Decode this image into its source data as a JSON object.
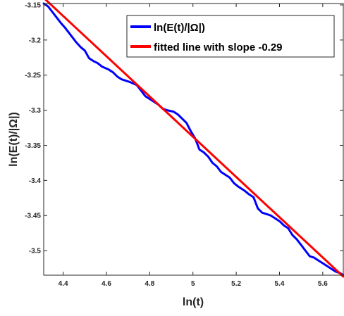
{
  "chart_data": {
    "type": "line",
    "xlabel": "ln(t)",
    "ylabel": "ln(E(t)/|Ω|)",
    "xlim": [
      4.31,
      5.695
    ],
    "ylim": [
      -3.535,
      -3.148
    ],
    "xticks": [
      4.4,
      4.6,
      4.8,
      5,
      5.2,
      5.4,
      5.6
    ],
    "xtick_labels": [
      "4.4",
      "4.6",
      "4.8",
      "5",
      "5.2",
      "5.4",
      "5.6"
    ],
    "yticks": [
      -3.15,
      -3.2,
      -3.25,
      -3.3,
      -3.35,
      -3.4,
      -3.45,
      -3.5
    ],
    "ytick_labels": [
      "-3.15",
      "-3.2",
      "-3.25",
      "-3.3",
      "-3.35",
      "-3.4",
      "-3.45",
      "-3.5"
    ],
    "grid": false,
    "legend_position": "top-right",
    "series": [
      {
        "name": "ln(E(t)/|Ω|)",
        "color": "#0000ff",
        "x": [
          4.31,
          4.33,
          4.35,
          4.37,
          4.39,
          4.41,
          4.44,
          4.46,
          4.48,
          4.5,
          4.52,
          4.54,
          4.56,
          4.58,
          4.61,
          4.63,
          4.65,
          4.67,
          4.69,
          4.71,
          4.74,
          4.76,
          4.78,
          4.8,
          4.82,
          4.84,
          4.86,
          4.88,
          4.91,
          4.93,
          4.95,
          4.97,
          4.99,
          5.01,
          5.03,
          5.05,
          5.07,
          5.09,
          5.11,
          5.13,
          5.15,
          5.17,
          5.19,
          5.21,
          5.24,
          5.26,
          5.28,
          5.3,
          5.32,
          5.34,
          5.36,
          5.38,
          5.4,
          5.42,
          5.44,
          5.46,
          5.48,
          5.5,
          5.52,
          5.54,
          5.56,
          5.58,
          5.6,
          5.62,
          5.64,
          5.66,
          5.68,
          5.695
        ],
        "y": [
          -3.148,
          -3.152,
          -3.16,
          -3.168,
          -3.176,
          -3.183,
          -3.195,
          -3.203,
          -3.21,
          -3.215,
          -3.226,
          -3.23,
          -3.233,
          -3.238,
          -3.242,
          -3.246,
          -3.252,
          -3.256,
          -3.258,
          -3.26,
          -3.264,
          -3.272,
          -3.28,
          -3.284,
          -3.288,
          -3.292,
          -3.298,
          -3.3,
          -3.302,
          -3.306,
          -3.312,
          -3.318,
          -3.33,
          -3.34,
          -3.356,
          -3.36,
          -3.366,
          -3.375,
          -3.38,
          -3.388,
          -3.392,
          -3.396,
          -3.404,
          -3.409,
          -3.415,
          -3.42,
          -3.424,
          -3.44,
          -3.446,
          -3.448,
          -3.45,
          -3.454,
          -3.458,
          -3.464,
          -3.468,
          -3.478,
          -3.484,
          -3.492,
          -3.5,
          -3.508,
          -3.51,
          -3.514,
          -3.518,
          -3.522,
          -3.526,
          -3.53,
          -3.532,
          -3.535
        ]
      },
      {
        "name": "fitted line with slope -0.29",
        "color": "#ff0000",
        "x": [
          4.31,
          5.695
        ],
        "y": [
          -3.14,
          -3.537
        ]
      }
    ]
  }
}
